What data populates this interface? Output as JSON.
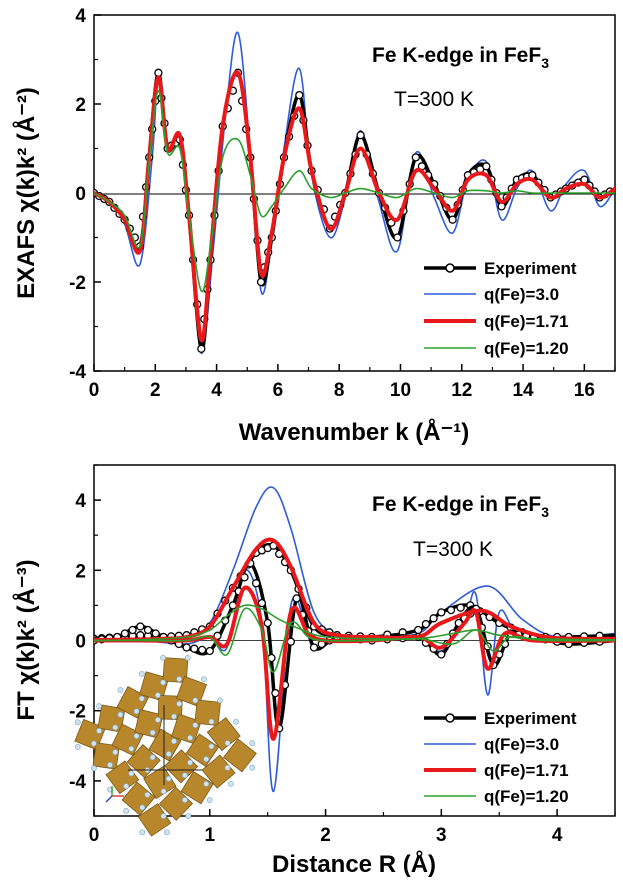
{
  "chart_data": [
    {
      "type": "line",
      "id": "exafs",
      "ylabel": "EXAFS χ(k)k² (Å⁻²)",
      "xlabel": "Wavenumber k (Å⁻¹)",
      "xlim": [
        0,
        17
      ],
      "ylim": [
        -4,
        4
      ],
      "xticks": [
        0,
        2,
        4,
        6,
        8,
        10,
        12,
        14,
        16
      ],
      "yticks": [
        -4,
        -2,
        0,
        2,
        4
      ],
      "annotation_title": "Fe K-edge in FeF",
      "annotation_subscript": "3",
      "annotation_temp": "T=300 K",
      "legend": [
        "Experiment",
        "q(Fe)=3.0",
        "q(Fe)=1.71",
        "q(Fe)=1.20"
      ],
      "series": [
        {
          "name": "Experiment",
          "color": "#000000",
          "x": [
            0,
            0.5,
            1,
            1.5,
            1.8,
            2.1,
            2.4,
            2.8,
            3.1,
            3.5,
            3.8,
            4.2,
            4.7,
            5.1,
            5.45,
            5.8,
            6.2,
            6.7,
            7.1,
            7.7,
            8.2,
            8.7,
            9.3,
            9.9,
            10.5,
            11.1,
            11.7,
            12.2,
            12.8,
            13.3,
            13.8,
            14.3,
            14.9,
            15.4,
            16,
            16.5,
            17
          ],
          "y": [
            0,
            -0.2,
            -0.6,
            -1.2,
            0.8,
            2.7,
            1.0,
            1.2,
            -0.5,
            -3.5,
            -1.5,
            1.5,
            2.7,
            0.8,
            -2.0,
            -1.0,
            0.8,
            2.2,
            0.5,
            -0.8,
            0.0,
            1.3,
            0.0,
            -1.0,
            0.8,
            0.2,
            -0.6,
            0.4,
            0.6,
            -0.3,
            0.3,
            0.4,
            -0.1,
            0.1,
            0.3,
            -0.1,
            0.1
          ]
        },
        {
          "name": "q(Fe)=3.0",
          "color": "#2f5bd6",
          "x": [
            0,
            0.5,
            1,
            1.5,
            1.9,
            2.1,
            2.4,
            2.8,
            3.1,
            3.5,
            3.9,
            4.3,
            4.7,
            5.1,
            5.45,
            5.8,
            6.2,
            6.7,
            7.1,
            7.7,
            8.2,
            8.7,
            9.3,
            9.9,
            10.5,
            11.1,
            11.7,
            12.2,
            12.8,
            13.3,
            13.8,
            14.3,
            14.9,
            15.4,
            16,
            16.5,
            17
          ],
          "y": [
            0,
            -0.2,
            -0.7,
            -1.6,
            0.8,
            2.5,
            1.0,
            1.3,
            -0.6,
            -3.6,
            -1.2,
            1.8,
            3.6,
            0.9,
            -2.2,
            -1.1,
            1.0,
            2.8,
            0.4,
            -1.0,
            -0.1,
            1.4,
            -0.2,
            -1.3,
            0.9,
            -0.1,
            -0.9,
            0.3,
            0.7,
            -0.6,
            0.1,
            0.5,
            -0.4,
            0.2,
            0.5,
            -0.3,
            0.1
          ]
        },
        {
          "name": "q(Fe)=1.71",
          "color": "#e8181b",
          "x": [
            0,
            0.5,
            1,
            1.5,
            1.8,
            2.1,
            2.4,
            2.8,
            3.1,
            3.5,
            3.8,
            4.2,
            4.7,
            5.1,
            5.45,
            5.8,
            6.2,
            6.7,
            7.1,
            7.7,
            8.2,
            8.7,
            9.3,
            9.9,
            10.5,
            11.1,
            11.7,
            12.2,
            12.8,
            13.3,
            13.8,
            14.3,
            14.9,
            15.4,
            16,
            16.5,
            17
          ],
          "y": [
            0,
            -0.2,
            -0.6,
            -1.3,
            0.8,
            2.6,
            1.0,
            1.3,
            -0.5,
            -3.3,
            -1.4,
            1.5,
            2.7,
            0.8,
            -1.8,
            -0.9,
            0.8,
            1.9,
            0.5,
            -0.8,
            0.0,
            1.0,
            0.0,
            -0.6,
            0.5,
            0.1,
            -0.4,
            0.3,
            0.4,
            -0.2,
            0.2,
            0.3,
            -0.1,
            0.1,
            0.2,
            -0.1,
            0.1
          ]
        },
        {
          "name": "q(Fe)=1.20",
          "color": "#2ca02c",
          "x": [
            0,
            0.5,
            1,
            1.5,
            1.8,
            2.1,
            2.4,
            2.8,
            3.1,
            3.5,
            3.8,
            4.2,
            4.7,
            5.1,
            5.45,
            5.8,
            6.2,
            6.7,
            7.1,
            7.7,
            8.2,
            8.7,
            9.3,
            9.9,
            10.5,
            11.1,
            11.7,
            12.2,
            12.8,
            13.3,
            13.8,
            14.3,
            14.9,
            15.4,
            16,
            16.5,
            17
          ],
          "y": [
            0,
            -0.2,
            -0.5,
            -1.2,
            0.7,
            2.3,
            0.9,
            1.0,
            -0.5,
            -2.2,
            -1.2,
            0.8,
            1.2,
            0.4,
            -0.5,
            -0.3,
            0.1,
            0.5,
            0.1,
            -0.1,
            0.0,
            0.1,
            0.0,
            -0.1,
            0.1,
            0.0,
            -0.1,
            0.05,
            0.05,
            0.0,
            0.05,
            0.0,
            0.0,
            0.0,
            0.0,
            0.0,
            0.0
          ]
        }
      ]
    },
    {
      "type": "line",
      "id": "ft",
      "ylabel": "FT χ(k)k² (Å⁻³)",
      "xlabel": "Distance R (Å)",
      "xlim": [
        0,
        4.5
      ],
      "ylim": [
        -5,
        5
      ],
      "xticks": [
        0,
        1,
        2,
        3,
        4
      ],
      "yticks": [
        -4,
        -2,
        0,
        2,
        4
      ],
      "annotation_title": "Fe K-edge in FeF",
      "annotation_subscript": "3",
      "annotation_temp": "T=300 K",
      "legend": [
        "Experiment",
        "q(Fe)=3.0",
        "q(Fe)=1.71",
        "q(Fe)=1.20"
      ],
      "series": [
        {
          "name": "Experiment",
          "color": "#000000",
          "kind": "magnitude",
          "x": [
            0,
            0.2,
            0.4,
            0.6,
            0.8,
            1.0,
            1.2,
            1.4,
            1.55,
            1.7,
            1.9,
            2.1,
            2.4,
            2.8,
            3.0,
            3.25,
            3.5,
            3.8,
            4.1,
            4.5
          ],
          "y": [
            0.05,
            0.1,
            0.15,
            0.1,
            0.15,
            0.4,
            1.5,
            2.5,
            2.7,
            2.0,
            0.4,
            0.15,
            0.1,
            0.3,
            0.8,
            1.0,
            0.5,
            0.1,
            0.1,
            0.15
          ]
        },
        {
          "name": "Experiment",
          "color": "#000000",
          "kind": "imaginary",
          "x": [
            0,
            0.2,
            0.4,
            0.6,
            0.8,
            1.0,
            1.2,
            1.35,
            1.5,
            1.6,
            1.75,
            1.9,
            2.1,
            2.4,
            2.8,
            3.0,
            3.15,
            3.3,
            3.45,
            3.6,
            3.8,
            4.1,
            4.5
          ],
          "y": [
            0.0,
            0.1,
            0.4,
            0.1,
            -0.2,
            -0.3,
            1.0,
            2.2,
            0.5,
            -2.5,
            1.2,
            -0.2,
            0.1,
            0.0,
            0.1,
            -0.4,
            0.5,
            0.9,
            -0.7,
            0.2,
            0.1,
            -0.1,
            0.0
          ]
        },
        {
          "name": "q(Fe)=3.0",
          "color": "#2f5bd6",
          "kind": "magnitude",
          "x": [
            0,
            0.2,
            0.4,
            0.6,
            0.8,
            1.0,
            1.2,
            1.4,
            1.55,
            1.7,
            1.9,
            2.1,
            2.4,
            2.8,
            3.0,
            3.4,
            3.7,
            4.0,
            4.5
          ],
          "y": [
            0.02,
            0.02,
            0.03,
            0.05,
            0.1,
            0.5,
            2.0,
            3.8,
            4.35,
            3.2,
            0.8,
            0.2,
            0.1,
            0.2,
            0.8,
            1.55,
            0.6,
            0.1,
            0.2
          ]
        },
        {
          "name": "q(Fe)=3.0",
          "color": "#2f5bd6",
          "kind": "imaginary",
          "x": [
            0,
            0.4,
            0.8,
            1.0,
            1.15,
            1.3,
            1.45,
            1.55,
            1.7,
            1.85,
            2.0,
            2.4,
            2.8,
            3.0,
            3.2,
            3.3,
            3.4,
            3.5,
            3.65,
            3.9,
            4.5
          ],
          "y": [
            0.0,
            0.0,
            -0.1,
            0.1,
            -0.2,
            2.0,
            0.5,
            -4.3,
            1.0,
            0.3,
            0.0,
            0.0,
            0.1,
            -0.3,
            0.6,
            1.3,
            -1.55,
            0.8,
            0.2,
            0.0,
            0.0
          ]
        },
        {
          "name": "q(Fe)=1.71",
          "color": "#e8181b",
          "kind": "magnitude",
          "x": [
            0,
            0.2,
            0.4,
            0.6,
            0.8,
            1.0,
            1.2,
            1.4,
            1.55,
            1.7,
            1.9,
            2.1,
            2.4,
            2.8,
            3.0,
            3.35,
            3.6,
            3.9,
            4.2,
            4.5
          ],
          "y": [
            0.02,
            0.02,
            0.03,
            0.05,
            0.1,
            0.4,
            1.5,
            2.6,
            2.85,
            2.1,
            0.5,
            0.15,
            0.1,
            0.1,
            0.5,
            0.85,
            0.4,
            0.1,
            0.05,
            0.05
          ]
        },
        {
          "name": "q(Fe)=1.71",
          "color": "#e8181b",
          "kind": "imaginary",
          "x": [
            0,
            0.4,
            0.8,
            1.0,
            1.15,
            1.3,
            1.45,
            1.55,
            1.7,
            1.85,
            2.0,
            2.4,
            2.8,
            3.0,
            3.2,
            3.3,
            3.4,
            3.55,
            3.8,
            4.5
          ],
          "y": [
            0.0,
            0.0,
            0.0,
            0.1,
            -0.1,
            1.5,
            0.4,
            -2.8,
            0.8,
            0.2,
            0.0,
            0.0,
            0.1,
            -0.2,
            0.5,
            0.8,
            -0.8,
            0.2,
            0.0,
            0.0
          ]
        },
        {
          "name": "q(Fe)=1.20",
          "color": "#2ca02c",
          "kind": "magnitude",
          "x": [
            0,
            0.4,
            0.8,
            1.0,
            1.15,
            1.3,
            1.45,
            1.6,
            1.8,
            2.0,
            2.4,
            2.8,
            3.1,
            3.3,
            3.5,
            3.8,
            4.5
          ],
          "y": [
            0.0,
            0.02,
            0.1,
            0.3,
            0.7,
            1.0,
            0.9,
            0.6,
            0.3,
            0.1,
            0.05,
            0.05,
            0.2,
            0.3,
            0.15,
            0.05,
            0.02
          ]
        },
        {
          "name": "q(Fe)=1.20",
          "color": "#2ca02c",
          "kind": "imaginary",
          "x": [
            0,
            0.4,
            0.8,
            1.0,
            1.15,
            1.3,
            1.45,
            1.55,
            1.7,
            1.85,
            2.0,
            2.4,
            2.8,
            3.1,
            3.3,
            3.45,
            3.6,
            3.9,
            4.5
          ],
          "y": [
            0.0,
            0.0,
            0.0,
            0.1,
            -0.4,
            0.9,
            0.3,
            -0.9,
            0.5,
            0.1,
            0.0,
            0.0,
            0.05,
            -0.1,
            0.3,
            -0.3,
            0.1,
            0.0,
            0.0
          ]
        }
      ]
    }
  ]
}
